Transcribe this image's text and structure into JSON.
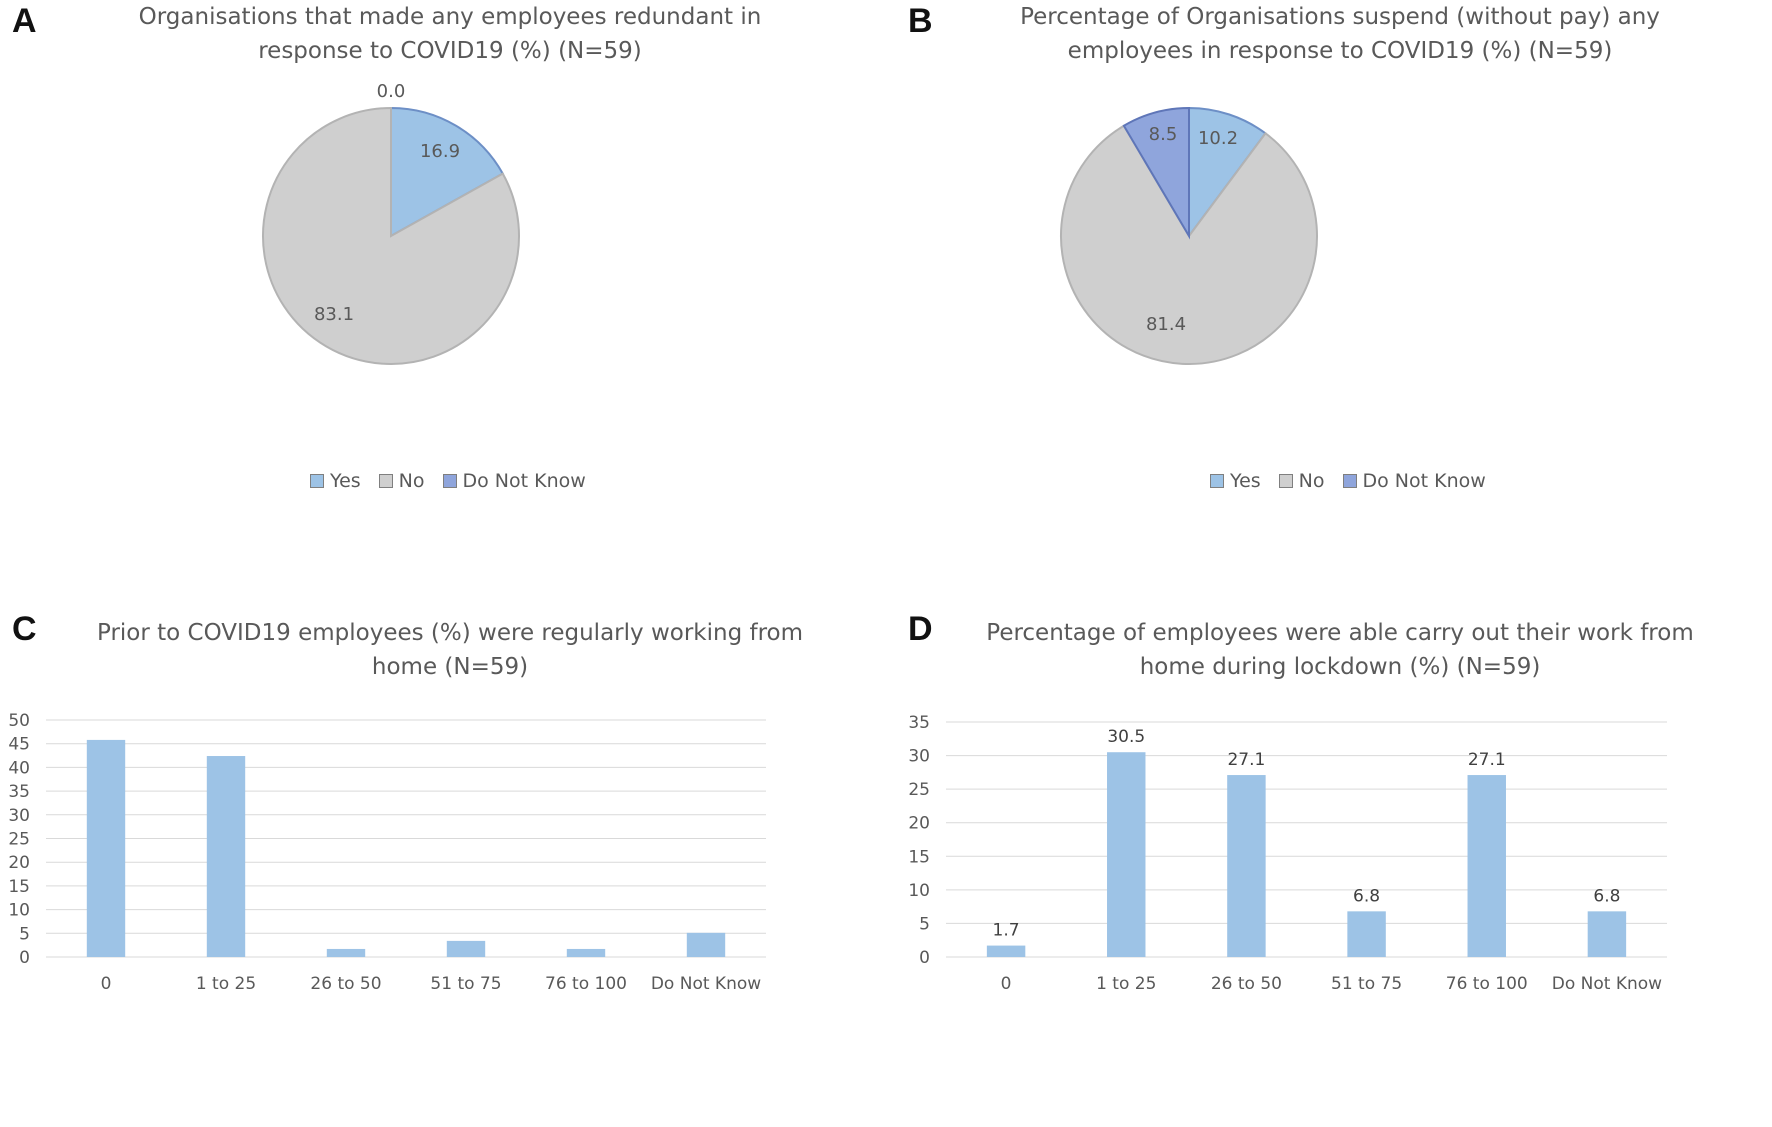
{
  "colors": {
    "yes": "#9dc3e6",
    "no": "#cfcfcf",
    "dnk": "#8fa5dc",
    "bar": "#9dc3e6",
    "grid": "#d9d9d9",
    "text": "#595959",
    "stroke": "#6d8fc6"
  },
  "panels": {
    "A": {
      "letter": "A",
      "title_line1": "Organisations that made any employees redundant in",
      "title_line2": "response to COVID19 (%) (N=59)"
    },
    "B": {
      "letter": "B",
      "title_line1": "Percentage of Organisations suspend (without pay) any",
      "title_line2": "employees in response to COVID19 (%) (N=59)"
    },
    "C": {
      "letter": "C",
      "title_line1": "Prior to COVID19 employees (%) were regularly working from",
      "title_line2": "home (N=59)"
    },
    "D": {
      "letter": "D",
      "title_line1": "Percentage of employees were able carry out their work from",
      "title_line2": "home during lockdown (%) (N=59)"
    }
  },
  "legend": {
    "yes": "Yes",
    "no": "No",
    "dnk": "Do Not Know"
  },
  "chart_data": [
    {
      "type": "pie",
      "title": "Organisations that made any employees redundant in response to COVID19 (%) (N=59)",
      "labels": [
        "Yes",
        "No",
        "Do Not Know"
      ],
      "values": [
        16.9,
        83.1,
        0.0
      ],
      "value_labels": [
        "16.9",
        "83.1",
        "0.0"
      ],
      "legend": "bottom"
    },
    {
      "type": "pie",
      "title": "Percentage of Organisations suspend (without pay) any employees in response to COVID19 (%) (N=59)",
      "labels": [
        "Yes",
        "No",
        "Do Not Know"
      ],
      "values": [
        10.2,
        81.4,
        8.5
      ],
      "value_labels": [
        "10.2",
        "81.4",
        "8.5"
      ],
      "legend": "bottom"
    },
    {
      "type": "bar",
      "title": "Prior to COVID19 employees (%) were regularly working from home (N=59)",
      "categories": [
        "0",
        "1 to 25",
        "26 to 50",
        "51 to 75",
        "76 to 100",
        "Do Not Know"
      ],
      "values": [
        45.8,
        42.4,
        1.7,
        3.4,
        1.7,
        5.1
      ],
      "show_value_labels": false,
      "ylim": [
        0,
        50
      ],
      "yticks": [
        "0",
        "5",
        "10",
        "15",
        "20",
        "25",
        "30",
        "35",
        "40",
        "45",
        "50"
      ],
      "grid": true
    },
    {
      "type": "bar",
      "title": "Percentage of employees were able carry out their work from home during lockdown (%) (N=59)",
      "categories": [
        "0",
        "1 to 25",
        "26 to 50",
        "51 to 75",
        "76 to 100",
        "Do Not Know"
      ],
      "values": [
        1.7,
        30.5,
        27.1,
        6.8,
        27.1,
        6.8
      ],
      "value_labels": [
        "1.7",
        "30.5",
        "27.1",
        "6.8",
        "27.1",
        "6.8"
      ],
      "show_value_labels": true,
      "ylim": [
        0,
        35
      ],
      "yticks": [
        "0",
        "5",
        "10",
        "15",
        "20",
        "25",
        "30",
        "35"
      ],
      "grid": true
    }
  ]
}
